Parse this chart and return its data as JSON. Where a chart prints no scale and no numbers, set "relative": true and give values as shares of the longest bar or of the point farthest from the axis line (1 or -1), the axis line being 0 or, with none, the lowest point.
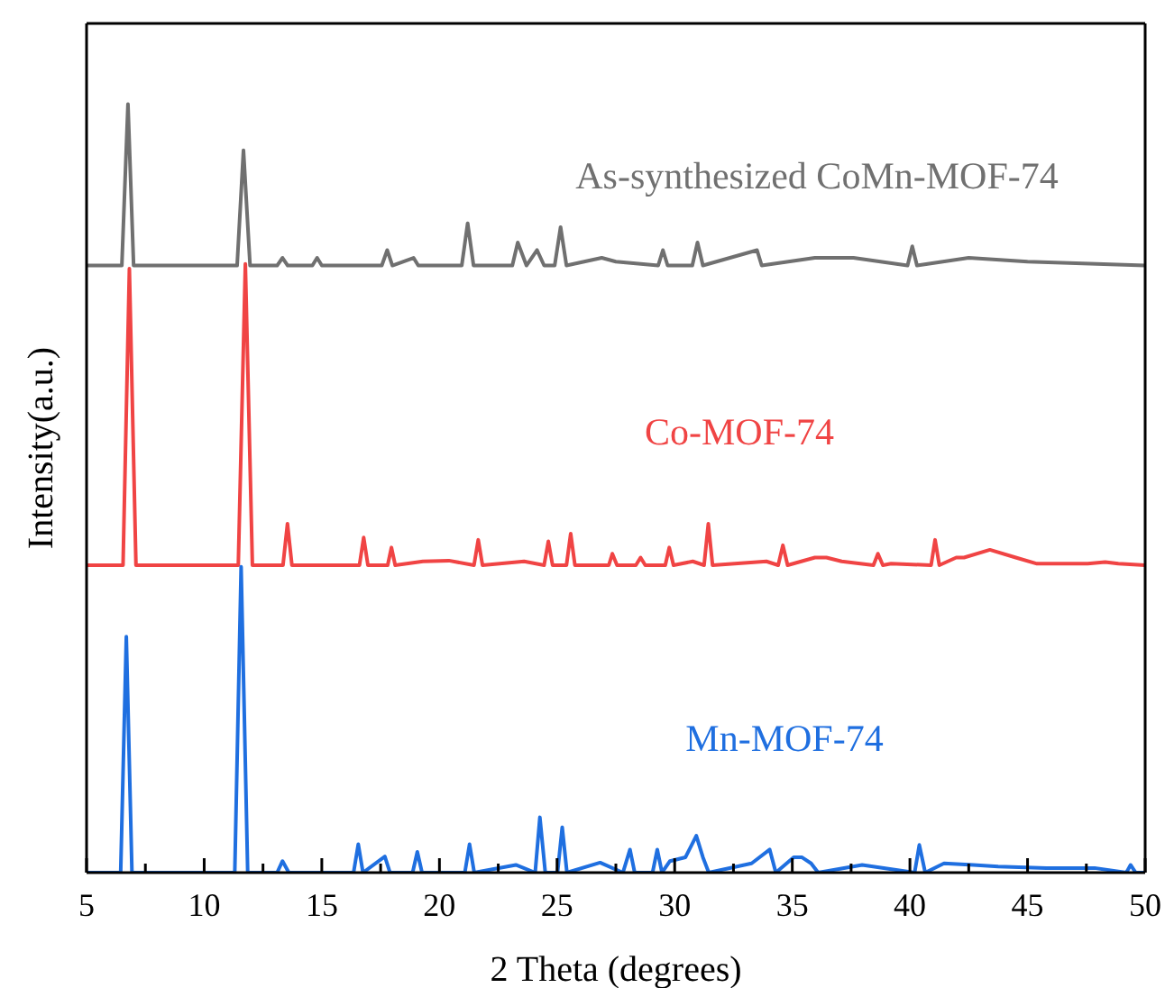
{
  "chart_data": {
    "type": "line",
    "relative": true,
    "xlabel": "2 Theta (degrees)",
    "ylabel": "Intensity(a.u.)",
    "xlim": [
      5,
      50
    ],
    "xticks": [
      5,
      {
        "value": 7.5,
        "label": null
      },
      10,
      {
        "value": 12.5,
        "label": null
      },
      15,
      {
        "value": 17.5,
        "label": null
      },
      20,
      {
        "value": 22.5,
        "label": null
      },
      25,
      {
        "value": 27.5,
        "label": null
      },
      30,
      {
        "value": 32.5,
        "label": null
      },
      35,
      {
        "value": 37.5,
        "label": null
      },
      40,
      {
        "value": 42.5,
        "label": null
      },
      45,
      {
        "value": 47.5,
        "label": null
      },
      50
    ],
    "series": [
      {
        "name": "As-synthesized CoMn-MOF-74",
        "color": "#707070",
        "x": [
          5,
          6.5,
          6.76,
          7.0,
          11.4,
          11.67,
          11.95,
          13.1,
          13.33,
          13.55,
          14.6,
          14.8,
          15.0,
          16.3,
          17.55,
          17.78,
          18.0,
          18.9,
          19.1,
          20.95,
          21.2,
          21.45,
          23.1,
          23.33,
          23.7,
          24.15,
          24.45,
          24.9,
          25.15,
          25.4,
          26.9,
          27.5,
          29.3,
          29.5,
          29.7,
          30.75,
          30.97,
          31.2,
          33.5,
          33.7,
          35.96,
          37.6,
          39.9,
          40.1,
          40.3,
          42.5,
          45.0,
          50
        ],
        "values": [
          0.79,
          0.79,
          1.0,
          0.79,
          0.79,
          0.94,
          0.79,
          0.79,
          0.8,
          0.79,
          0.79,
          0.8,
          0.79,
          0.79,
          0.79,
          0.81,
          0.79,
          0.8,
          0.79,
          0.79,
          0.845,
          0.79,
          0.79,
          0.82,
          0.79,
          0.81,
          0.79,
          0.79,
          0.84,
          0.79,
          0.8,
          0.795,
          0.79,
          0.81,
          0.79,
          0.79,
          0.82,
          0.79,
          0.81,
          0.79,
          0.8,
          0.8,
          0.79,
          0.815,
          0.79,
          0.8,
          0.795,
          0.79
        ]
      },
      {
        "name": "Co-MOF-74",
        "color": "#f04444",
        "x": [
          5,
          6.55,
          6.82,
          7.1,
          11.45,
          11.75,
          12.05,
          13.35,
          13.54,
          13.73,
          16.6,
          16.78,
          16.96,
          17.8,
          17.96,
          18.12,
          19.3,
          20.4,
          21.47,
          21.65,
          21.83,
          23.6,
          24.45,
          24.63,
          24.81,
          25.4,
          25.58,
          25.76,
          27.2,
          27.35,
          27.55,
          28.35,
          28.55,
          28.75,
          29.6,
          29.77,
          29.95,
          30.77,
          31.25,
          31.43,
          31.61,
          33.9,
          34.4,
          34.6,
          34.8,
          35.96,
          36.45,
          37.1,
          38.45,
          38.64,
          38.85,
          39.2,
          40.9,
          41.07,
          41.25,
          41.97,
          42.3,
          43.4,
          44.5,
          45.4,
          46.55,
          47.56,
          48.3,
          48.86,
          50
        ],
        "values": [
          0.4,
          0.4,
          0.786,
          0.4,
          0.4,
          0.792,
          0.4,
          0.4,
          0.454,
          0.4,
          0.4,
          0.436,
          0.4,
          0.4,
          0.423,
          0.4,
          0.405,
          0.406,
          0.4,
          0.433,
          0.4,
          0.405,
          0.4,
          0.431,
          0.4,
          0.4,
          0.441,
          0.4,
          0.4,
          0.415,
          0.4,
          0.4,
          0.41,
          0.4,
          0.4,
          0.423,
          0.4,
          0.405,
          0.4,
          0.454,
          0.4,
          0.405,
          0.4,
          0.426,
          0.4,
          0.41,
          0.41,
          0.405,
          0.4,
          0.415,
          0.4,
          0.402,
          0.4,
          0.433,
          0.4,
          0.41,
          0.41,
          0.42,
          0.41,
          0.402,
          0.402,
          0.402,
          0.404,
          0.402,
          0.4
        ]
      },
      {
        "name": "Mn-MOF-74",
        "color": "#1f6fe0",
        "x": [
          5,
          6.45,
          6.69,
          6.93,
          11.3,
          11.57,
          11.85,
          13.1,
          13.33,
          13.6,
          16.35,
          16.55,
          16.75,
          17.68,
          17.9,
          18.86,
          19.06,
          19.26,
          21.08,
          21.28,
          21.48,
          23.25,
          24.07,
          24.27,
          24.5,
          25.02,
          25.22,
          25.42,
          26.83,
          27.8,
          28.1,
          28.3,
          29.06,
          29.26,
          29.46,
          29.8,
          30.46,
          30.92,
          31.2,
          31.45,
          33.27,
          34.04,
          34.3,
          35.06,
          35.4,
          35.8,
          36.1,
          37.97,
          40.2,
          40.4,
          40.65,
          41.45,
          42.7,
          43.75,
          45.8,
          47.85,
          49.2,
          49.38,
          49.6,
          50
        ],
        "values": [
          0,
          0,
          0.307,
          0,
          0,
          0.398,
          0,
          0,
          0.015,
          0,
          0,
          0.037,
          0,
          0.021,
          0,
          0,
          0.027,
          0,
          0,
          0.037,
          0,
          0.01,
          0,
          0.072,
          0,
          0,
          0.059,
          0,
          0.013,
          0,
          0.03,
          0,
          0,
          0.03,
          0,
          0.015,
          0.02,
          0.048,
          0.02,
          0,
          0.012,
          0.03,
          0,
          0.02,
          0.02,
          0.012,
          0,
          0.01,
          0,
          0.036,
          0,
          0.012,
          0.01,
          0.008,
          0.006,
          0.006,
          0,
          0.01,
          0,
          0
        ]
      }
    ]
  }
}
